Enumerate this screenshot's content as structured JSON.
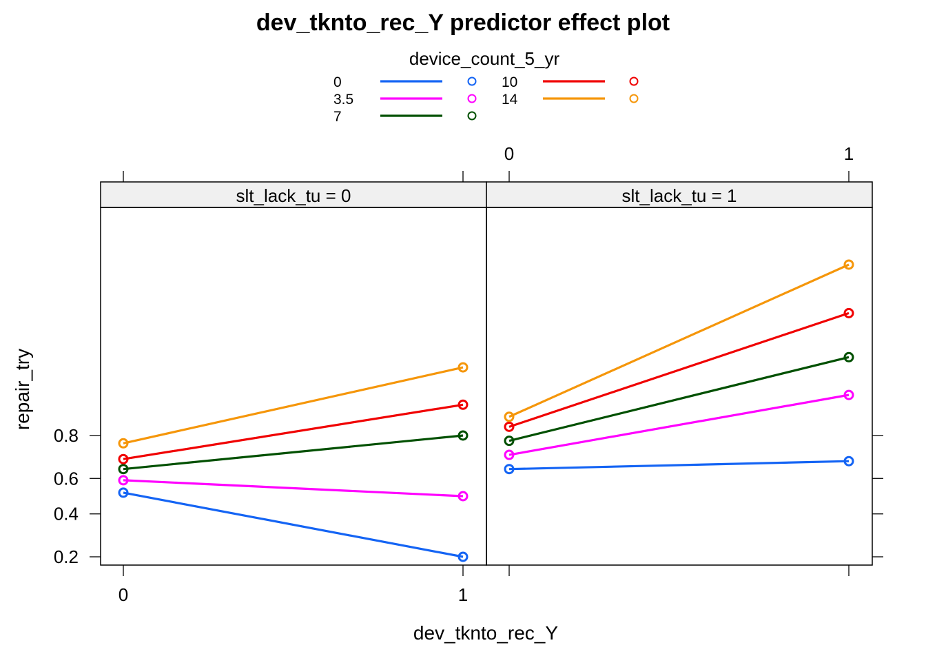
{
  "chart_data": {
    "type": "line",
    "title": "dev_tknto_rec_Y predictor effect plot",
    "xlabel": "dev_tknto_rec_Y",
    "ylabel": "repair_try",
    "legend": {
      "title": "device_count_5_yr",
      "placement": "top-center"
    },
    "x_categories": [
      "0",
      "1"
    ],
    "y_tick_labels": [
      "0.2",
      "0.4",
      "0.6",
      "0.8"
    ],
    "y_scale": "logit",
    "grid": false,
    "panels": [
      {
        "strip_label": "slt_lack_tu = 0",
        "series": [
          {
            "name": "0",
            "color": "#1464F4",
            "values": [
              0.52,
              0.2
            ]
          },
          {
            "name": "3.5",
            "color": "#FF00FF",
            "values": [
              0.59,
              0.5
            ]
          },
          {
            "name": "7",
            "color": "#005000",
            "values": [
              0.65,
              0.8
            ]
          },
          {
            "name": "10",
            "color": "#F00000",
            "values": [
              0.7,
              0.89
            ]
          },
          {
            "name": "14",
            "color": "#F5960A",
            "values": [
              0.77,
              0.95
            ]
          }
        ]
      },
      {
        "strip_label": "slt_lack_tu = 1",
        "series": [
          {
            "name": "0",
            "color": "#1464F4",
            "values": [
              0.65,
              0.69
            ]
          },
          {
            "name": "3.5",
            "color": "#FF00FF",
            "values": [
              0.72,
              0.91
            ]
          },
          {
            "name": "7",
            "color": "#005000",
            "values": [
              0.78,
              0.96
            ]
          },
          {
            "name": "10",
            "color": "#F00000",
            "values": [
              0.83,
              0.985
            ]
          },
          {
            "name": "14",
            "color": "#F5960A",
            "values": [
              0.86,
              0.995
            ]
          }
        ]
      }
    ]
  }
}
